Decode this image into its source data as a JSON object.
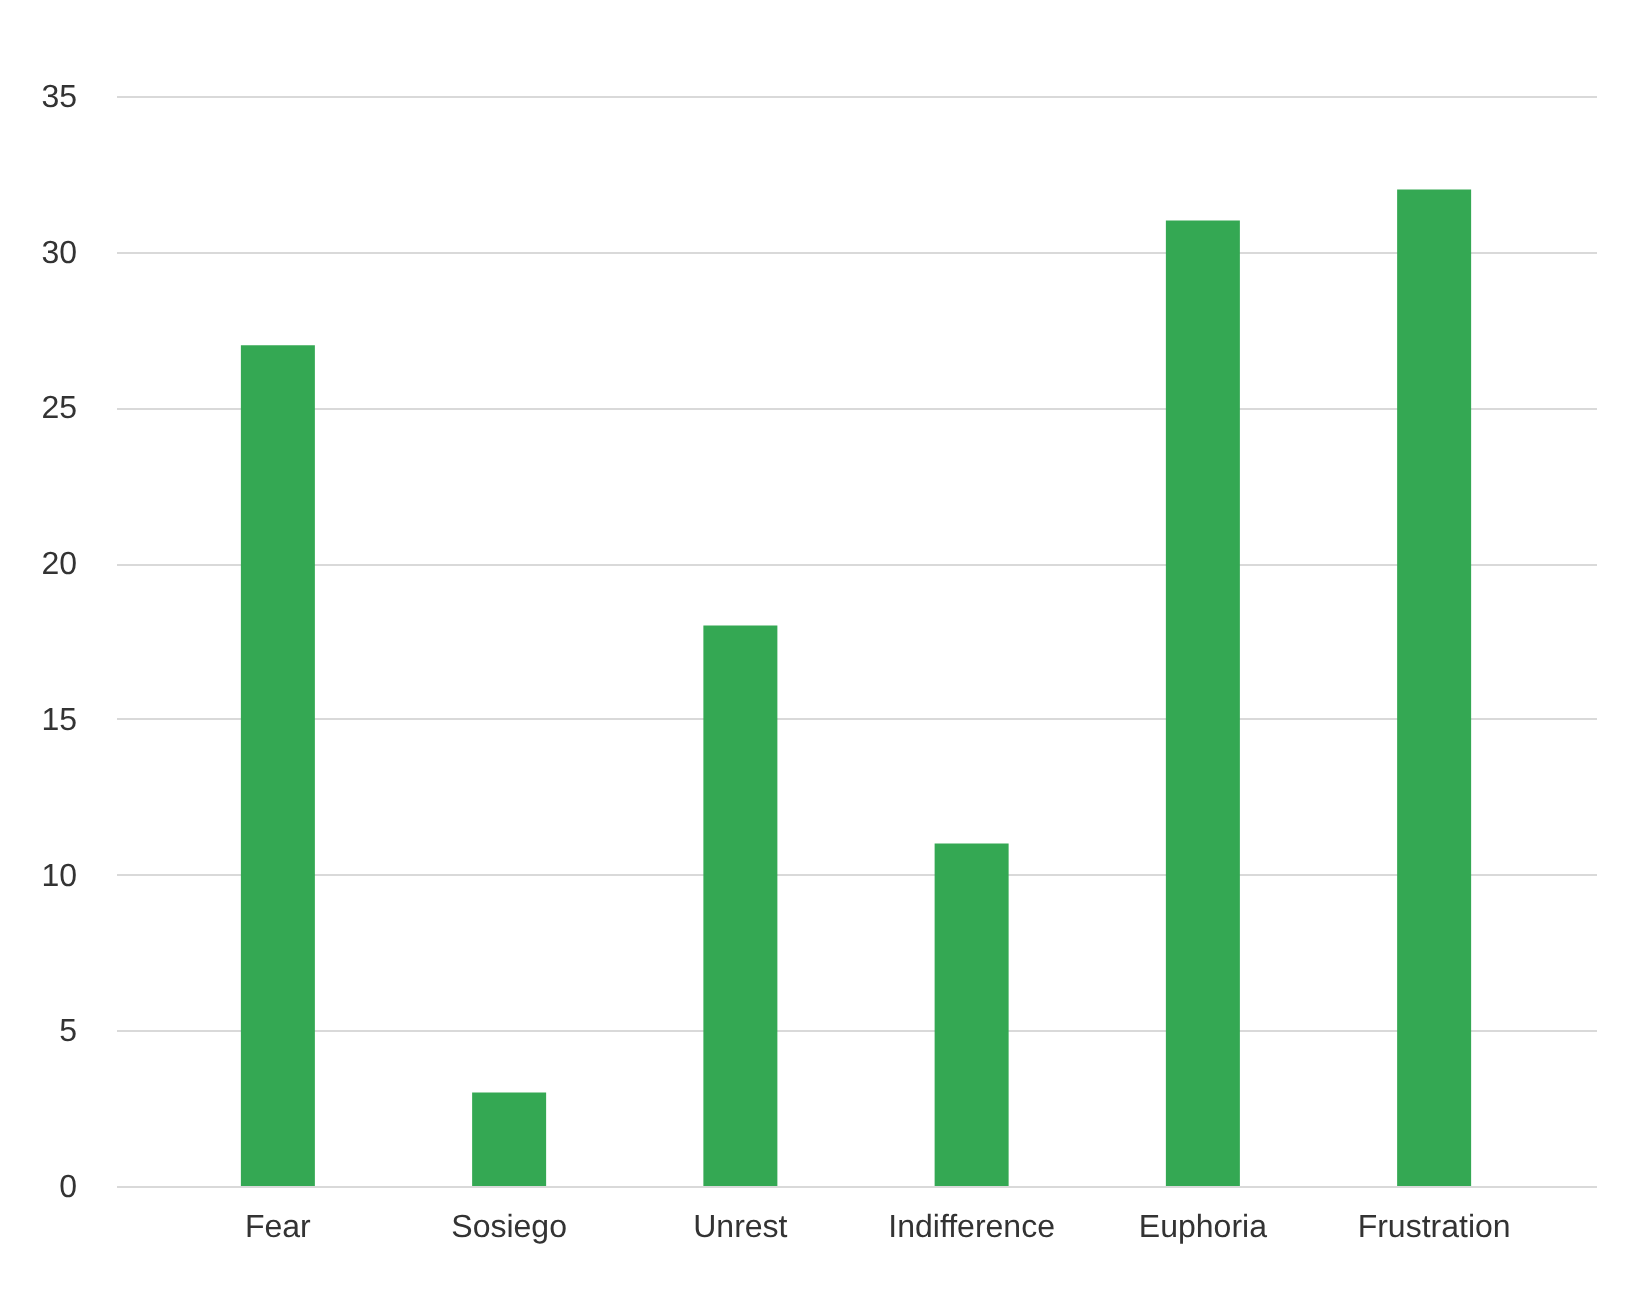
{
  "chart_data": {
    "type": "bar",
    "categories": [
      "Fear",
      "Sosiego",
      "Unrest",
      "Indifference",
      "Euphoria",
      "Frustration"
    ],
    "values": [
      27,
      3,
      18,
      11,
      31,
      32
    ],
    "color": "#34a853",
    "ylim": [
      0,
      35
    ],
    "yticks": [
      0,
      5,
      10,
      15,
      20,
      25,
      30,
      35
    ],
    "grid": "y"
  }
}
